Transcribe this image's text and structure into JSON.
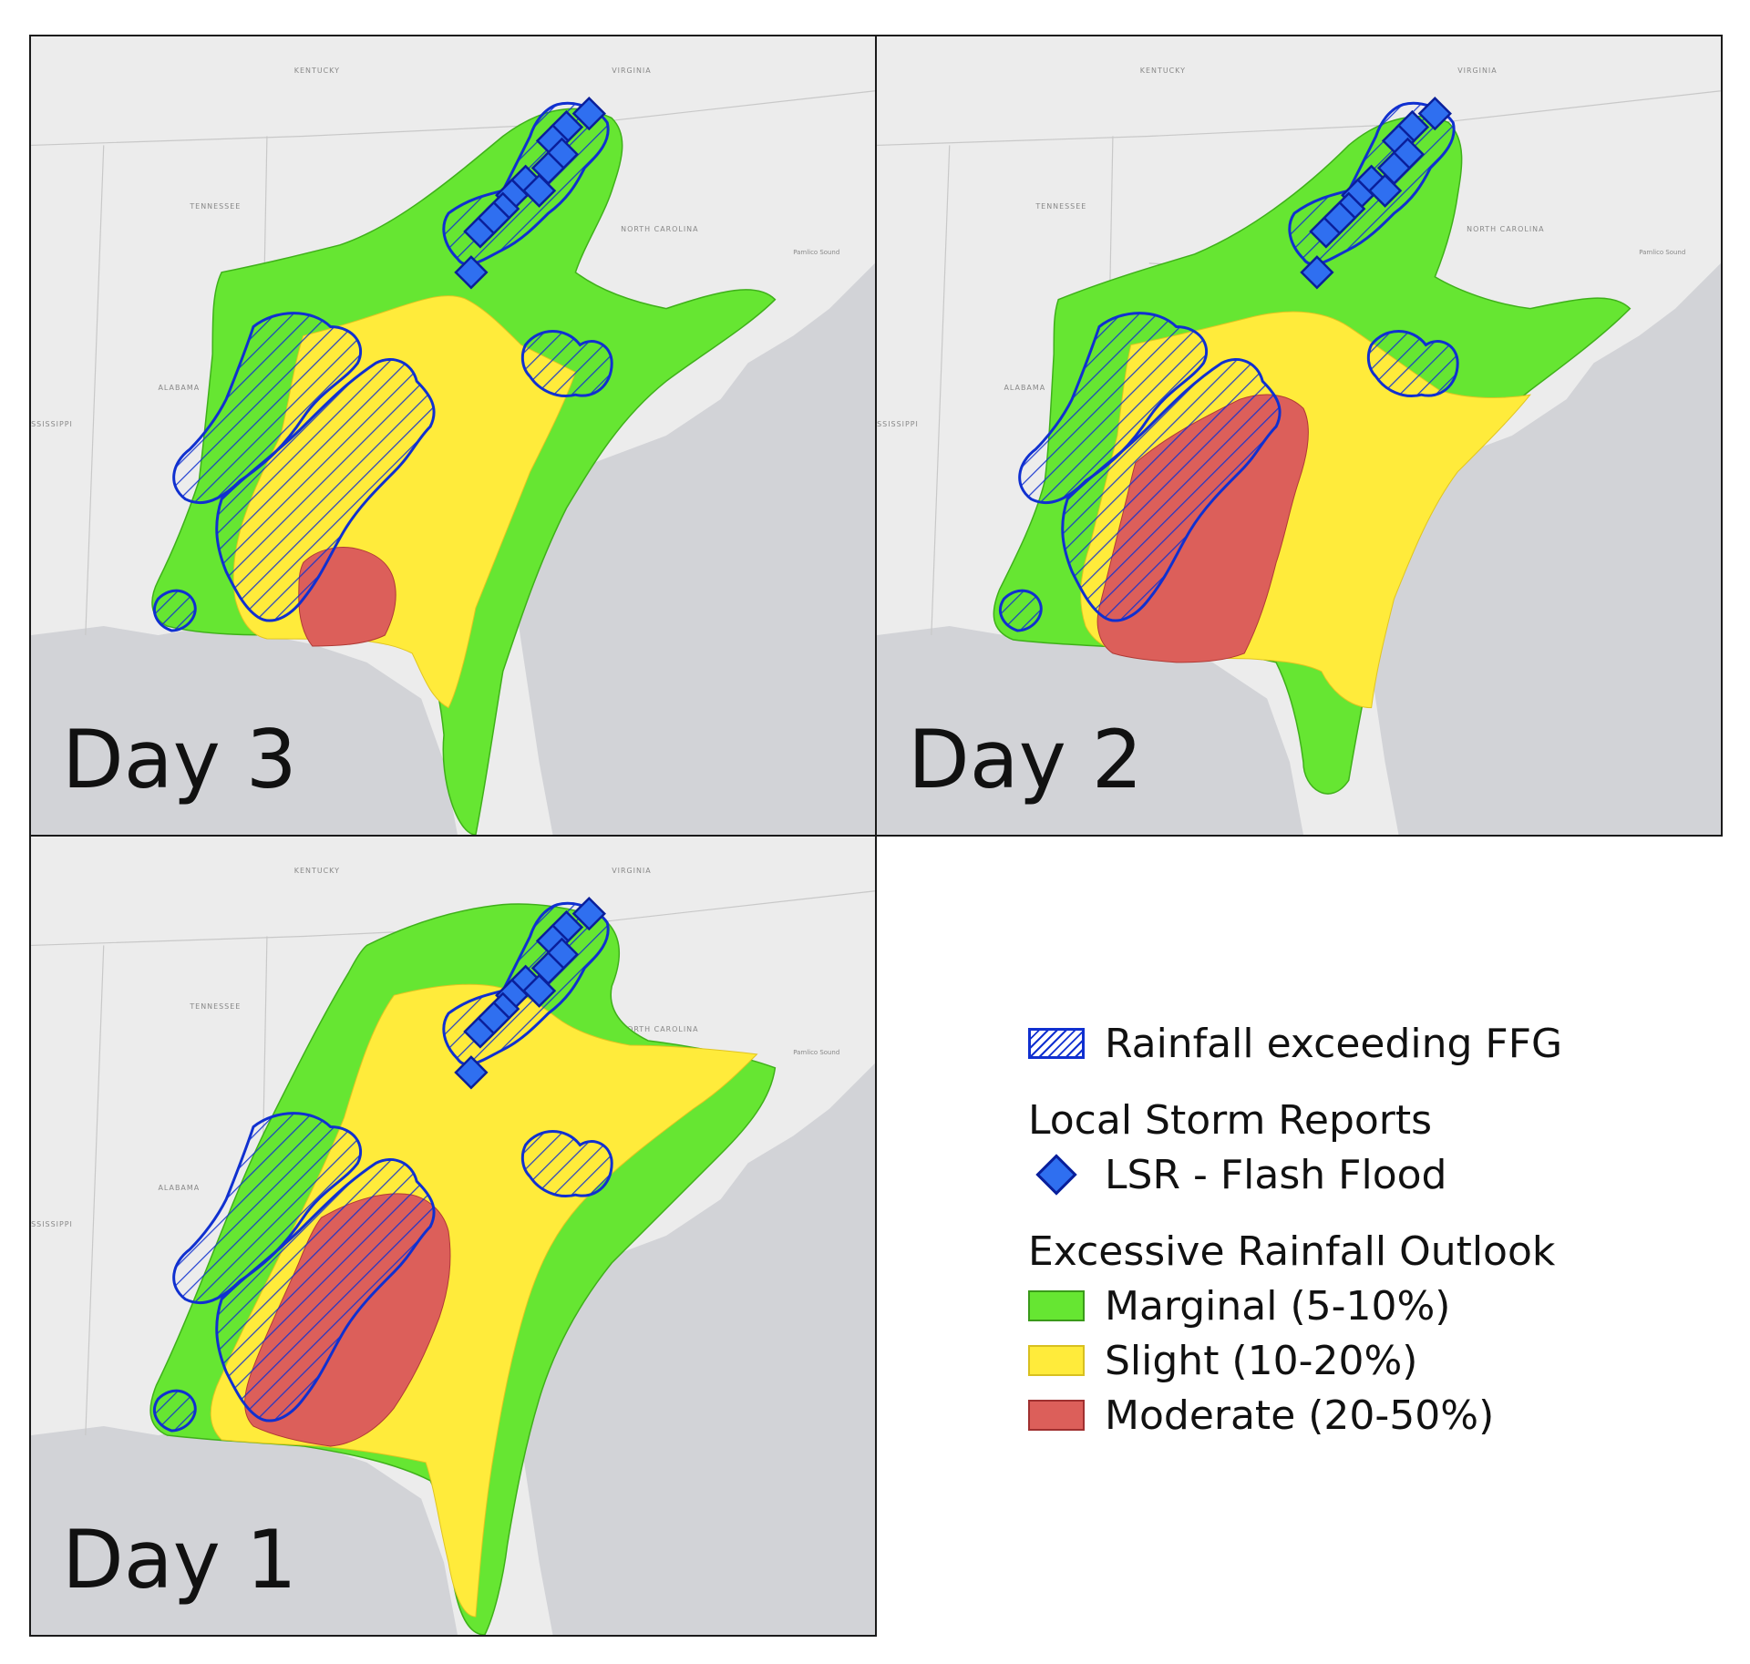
{
  "panels": [
    {
      "id": "day3",
      "label": "Day 3"
    },
    {
      "id": "day2",
      "label": "Day 2"
    },
    {
      "id": "day1",
      "label": "Day 1"
    }
  ],
  "map_labels": {
    "kentucky": "KENTUCKY",
    "virginia": "VIRGINIA",
    "tennessee": "TENNESSEE",
    "north_carolina": "NORTH CAROLINA",
    "alabama": "ALABAMA",
    "mississippi": "SSISSIPPI",
    "pamlico": "Pamlico Sound"
  },
  "legend": {
    "ffg_label": "Rainfall exceeding FFG",
    "lsr_heading": "Local Storm Reports",
    "lsr_label": "LSR - Flash Flood",
    "ero_heading": "Excessive Rainfall Outlook",
    "marginal_label": "Marginal (5-10%)",
    "slight_label": "Slight (10-20%)",
    "moderate_label": "Moderate (20-50%)"
  },
  "colors": {
    "land": "#ececec",
    "water": "#d2d3d7",
    "marginal": "#66e632",
    "slight": "#ffeb3b",
    "moderate": "#dc5f5a",
    "ffg_outline": "#1030d0",
    "lsr_fill": "#2f6ff0"
  }
}
